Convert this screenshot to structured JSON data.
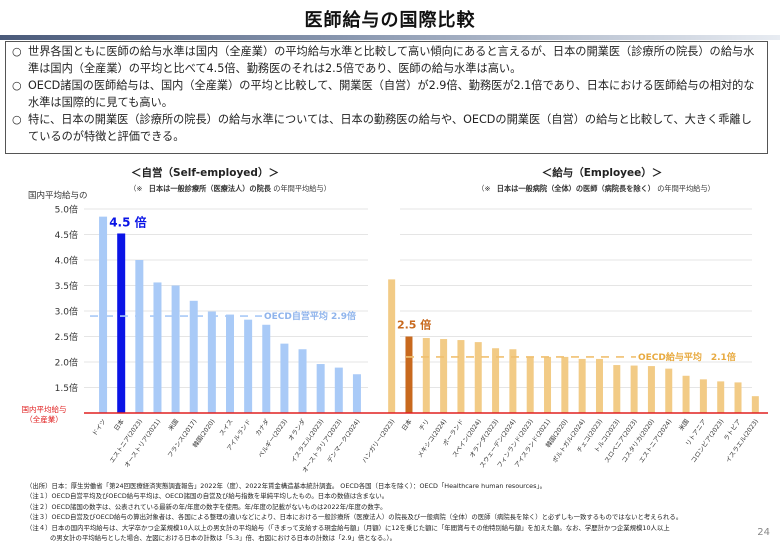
{
  "header": {
    "title": "医師給与の国際比較"
  },
  "summary": {
    "bullet_glyph": "○",
    "items": [
      "世界各国ともに医師の給与水準は国内（全産業）の平均給与水準と比較して高い傾向にあると言えるが、日本の開業医（診療所の院長）の給与水準は国内（全産業）の平均と比べて4.5倍、勤務医のそれは2.5倍であり、医師の給与水準は高い。",
      "OECD諸国の医師給与は、国内（全産業）の平均と比較して、開業医（自営）が2.9倍、勤務医が2.1倍であり、日本における医師給与の相対的な水準は国際的に見ても高い。",
      "特に、日本の開業医（診療所の院長）の給与水準については、日本の勤務医の給与や、OECDの開業医（自営）の給与と比較して、大きく乖離しているのが特徴と評価できる。"
    ]
  },
  "chart_data": [
    {
      "type": "bar",
      "title": "＜自営（Self-employed）＞",
      "subtitle_prefix": "（※",
      "subtitle_bold": "日本は一般診療所（医療法人）の院長",
      "subtitle_suffix": "の年間平均給与）",
      "ylabel": "国内平均給与の",
      "baseline_label_line1": "国内平均給与",
      "baseline_label_line2": "（全産業）",
      "baseline_value": 1.0,
      "ylim": [
        1.0,
        5.0
      ],
      "yticks": [
        1.5,
        2.0,
        2.5,
        3.0,
        3.5,
        4.0,
        4.5,
        5.0
      ],
      "ytick_labels": [
        "1.5倍",
        "2.0倍",
        "2.5倍",
        "3.0倍",
        "3.5倍",
        "4.0倍",
        "4.5倍",
        "5.0倍"
      ],
      "grid": true,
      "categories": [
        "ドイツ",
        "日本",
        "エストニア(2023)",
        "オーストリア(2021)",
        "米国",
        "フランス(2017)",
        "韓国(2020)",
        "スイス",
        "アイルランド",
        "カナダ",
        "ベルギー(2023)",
        "オランダ",
        "イスラエル(2023)",
        "オーストラリア(2023)",
        "デンマーク(2024)"
      ],
      "values": [
        4.85,
        4.52,
        4.0,
        3.56,
        3.5,
        3.2,
        2.99,
        2.93,
        2.83,
        2.73,
        2.36,
        2.25,
        1.96,
        1.89,
        1.76
      ],
      "highlight_index": 1,
      "highlight_label": "4.5 倍",
      "average_value": 2.9,
      "average_label": "OECD自営平均 2.9倍",
      "colors": {
        "bar": "#a9caf7",
        "highlight": "#0a14e6",
        "average": "#a9caf7",
        "average_text": "#8fb4ec",
        "baseline": "#e02020",
        "grid": "#dcdcdc"
      }
    },
    {
      "type": "bar",
      "title": "＜給与（Employee）＞",
      "subtitle_prefix": "（※",
      "subtitle_bold": "日本は一般病院（全体）の医師（病院長を除く）",
      "subtitle_suffix": "の年間平均給与）",
      "baseline_value": 1.0,
      "ylim": [
        1.0,
        5.0
      ],
      "yticks": [
        1.5,
        2.0,
        2.5,
        3.0,
        3.5,
        4.0,
        4.5,
        5.0
      ],
      "grid": true,
      "categories": [
        "ハンガリー(2023)",
        "日本",
        "チリ",
        "メキシコ(2024)",
        "ポーランド",
        "スペイン(2024)",
        "オランダ(2023)",
        "スウェーデン(2024)",
        "フィンランド(2023)",
        "アイスランド(2021)",
        "韓国(2020)",
        "ポルトガル(2024)",
        "チェコ(2023)",
        "トルコ(2023)",
        "スロベニア(2023)",
        "コスタリカ(2020)",
        "エストニア(2024)",
        "米国",
        "リトアニア",
        "コロンビア(2023)",
        "ラトビア",
        "イスラエル(2023)"
      ],
      "values": [
        3.62,
        2.5,
        2.47,
        2.45,
        2.43,
        2.39,
        2.27,
        2.25,
        2.1,
        2.1,
        2.1,
        2.06,
        2.06,
        1.94,
        1.93,
        1.92,
        1.87,
        1.73,
        1.66,
        1.62,
        1.6,
        1.33
      ],
      "highlight_index": 1,
      "highlight_label": "2.5 倍",
      "average_value": 2.1,
      "average_label": "OECD給与平均　2.1倍",
      "colors": {
        "bar": "#f2cb86",
        "highlight": "#c8691e",
        "average": "#f0c070",
        "average_text": "#e8aa40",
        "baseline": "#e02020",
        "grid": "#dcdcdc"
      }
    }
  ],
  "notes": {
    "source": "（出所）日本：厚生労働省「第24回医療経済実態調査報告」2022年（度）、2022年賃金構造基本統計調査。 OECD各国（日本を除く）：OECD「Healthcare human resources」。",
    "note1": "（注１）OECD自営平均及びOECD給与平均は、OECD諸国の自営及び給与指数を単純平均したもの。日本の数値は含まない。",
    "note2": "（注２）OECD諸国の数字は、公表されている最新の年/年度の数字を使用。年/年度の記載がないものは2022年/年度の数字。",
    "note3": "（注３）OECD自営及びOECD給与の算出対象者は、各国による整理の違いなどにより、日本における一般診療所（医療法人）の院長及び一般病院（全体）の医師（病院長を除く）と必ずしも一致するものではないと考えられる。",
    "note4_line1": "（注４）日本の国内平均給与は、大学卒かつ企業規模10人以上の男女計の平均給与（「きまって支給する現金給与額」（月額）に12を乗じた額に「年間賞与その他特別給与額」を加えた額。なお、学歴計かつ企業規模10人以上",
    "note4_line2": "の男女計の平均給与とした場合、左図における日本の計数は「5.3」倍、右図における日本の計数は「2.9」倍となる。）。"
  },
  "page_number": "24"
}
